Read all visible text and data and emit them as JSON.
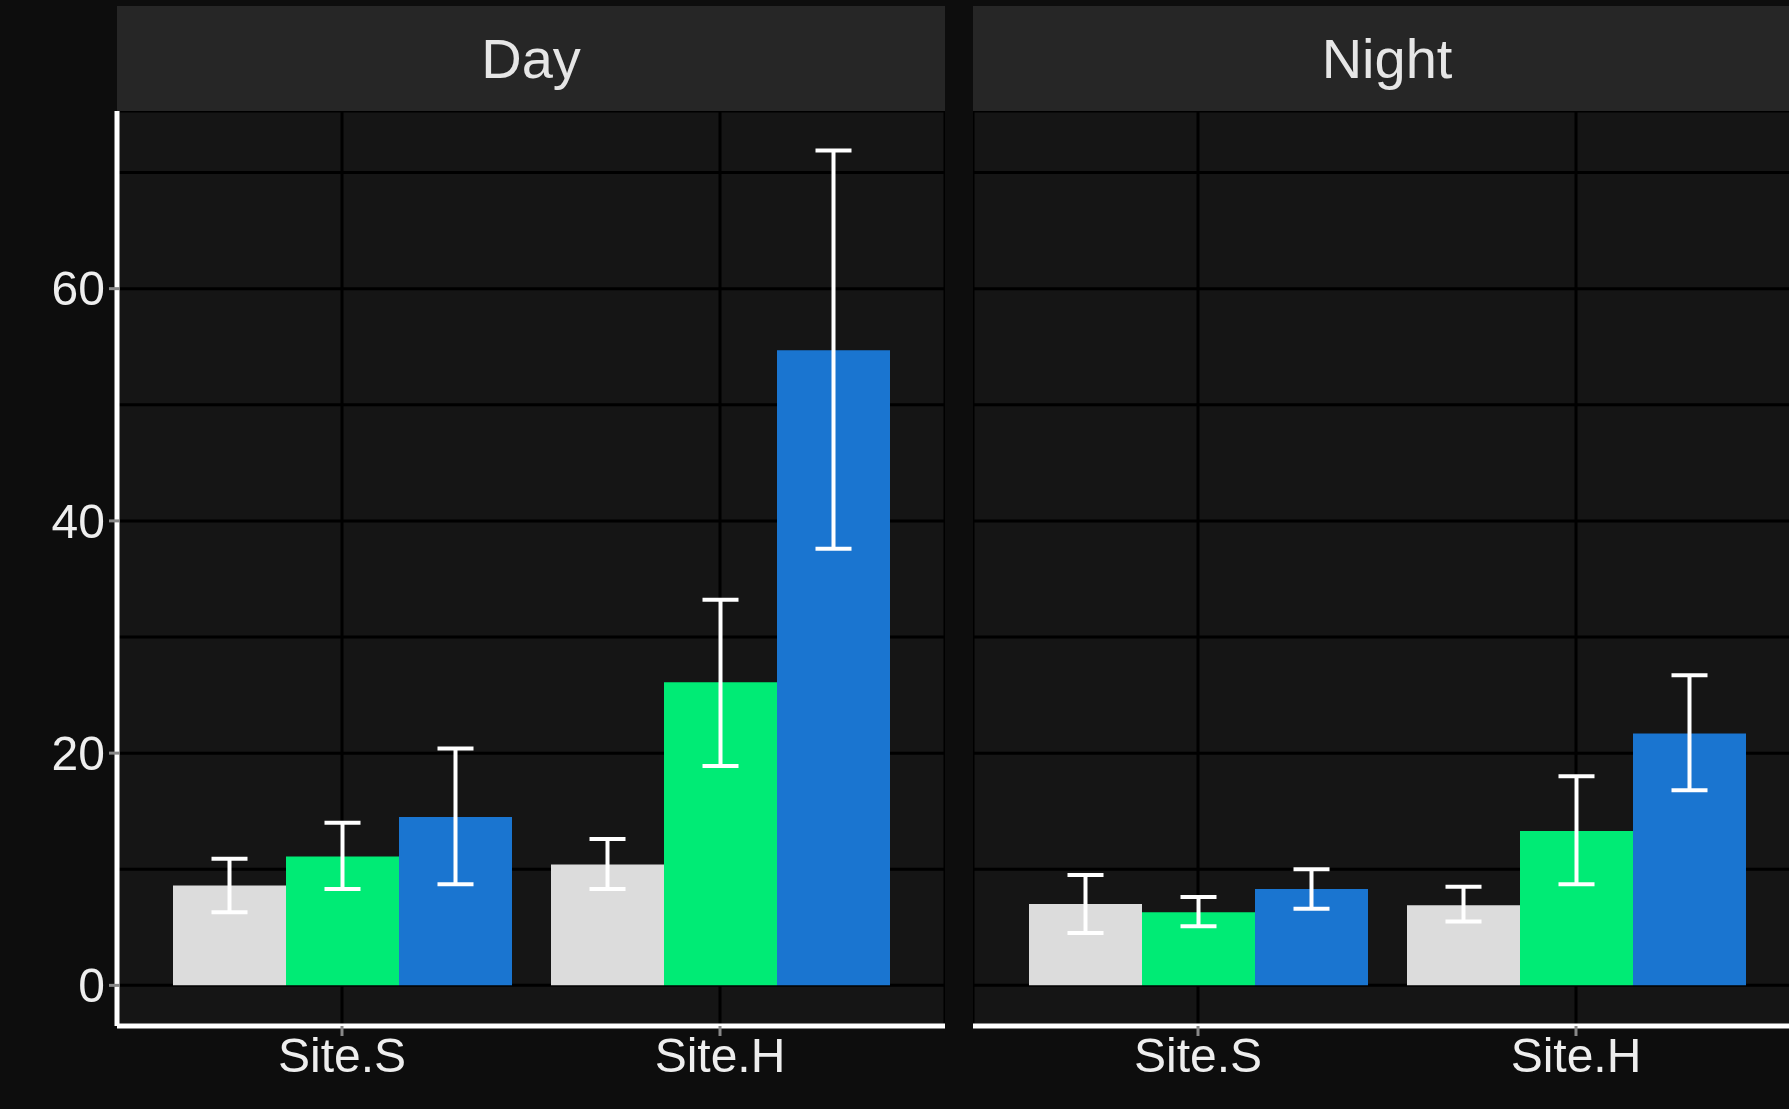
{
  "chart_data": [
    {
      "type": "bar",
      "title": "Day",
      "categories": [
        "Site.S",
        "Site.H"
      ],
      "ylim": [
        -3.5,
        75.3
      ],
      "yticks": [
        0,
        {
          "value": 10,
          "label": null
        },
        20,
        {
          "value": 30,
          "label": null
        },
        40,
        {
          "value": 50,
          "label": null
        },
        60,
        {
          "value": 70,
          "label": null
        }
      ],
      "grid": true,
      "series": [
        {
          "color": "#dcdcdc",
          "values": [
            8.6,
            10.4
          ],
          "errors": [
            [
              6.3,
              10.9
            ],
            [
              8.3,
              12.6
            ]
          ]
        },
        {
          "color": "#00eb75",
          "values": [
            11.1,
            26.1
          ],
          "errors": [
            [
              8.3,
              14.0
            ],
            [
              18.9,
              33.2
            ]
          ]
        },
        {
          "color": "#1a75d0",
          "values": [
            14.5,
            54.7
          ],
          "errors": [
            [
              8.7,
              20.4
            ],
            [
              37.6,
              71.9
            ]
          ]
        }
      ]
    },
    {
      "type": "bar",
      "title": "Night",
      "categories": [
        "Site.S",
        "Site.H"
      ],
      "ylim": [
        -3.5,
        75.3
      ],
      "yticks": [
        0,
        {
          "value": 10,
          "label": null
        },
        20,
        {
          "value": 30,
          "label": null
        },
        40,
        {
          "value": 50,
          "label": null
        },
        60,
        {
          "value": 70,
          "label": null
        }
      ],
      "grid": true,
      "tick_labels": "x",
      "series": [
        {
          "color": "#dcdcdc",
          "values": [
            7.0,
            6.9
          ],
          "errors": [
            [
              4.5,
              9.5
            ],
            [
              5.5,
              8.5
            ]
          ]
        },
        {
          "color": "#00eb75",
          "values": [
            6.3,
            13.3
          ],
          "errors": [
            [
              5.1,
              7.6
            ],
            [
              8.7,
              18.0
            ]
          ]
        },
        {
          "color": "#1a75d0",
          "values": [
            8.3,
            21.7
          ],
          "errors": [
            [
              6.6,
              10.0
            ],
            [
              16.8,
              26.7
            ]
          ]
        }
      ]
    }
  ]
}
